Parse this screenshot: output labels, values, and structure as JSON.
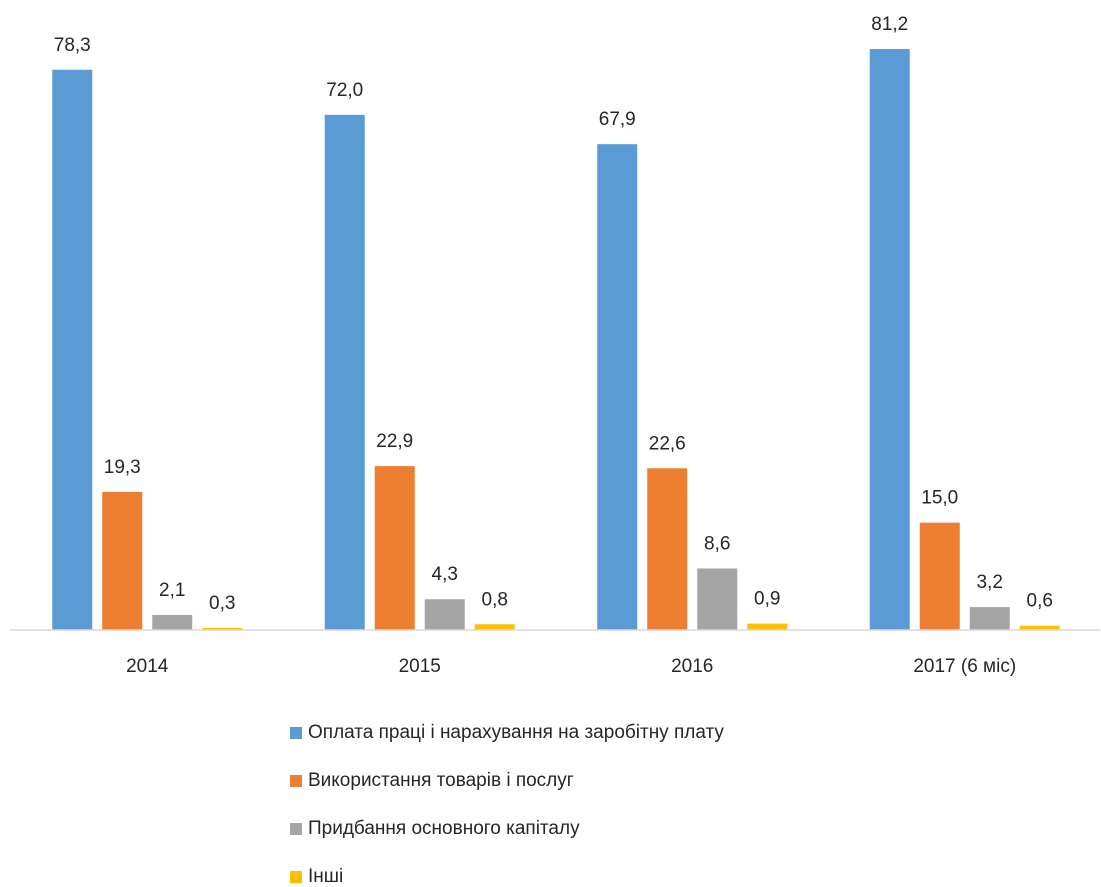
{
  "chart_data": {
    "type": "bar",
    "categories": [
      "2014",
      "2015",
      "2016",
      "2017 (6 міс)"
    ],
    "series": [
      {
        "name": "Оплата праці і нарахування на заробітну плату",
        "color": "#5b9bd5",
        "values": [
          78.3,
          72.0,
          67.9,
          81.2
        ],
        "value_labels": [
          "78,3",
          "72,0",
          "67,9",
          "81,2"
        ]
      },
      {
        "name": "Використання товарів і послуг",
        "color": "#ed7d31",
        "values": [
          19.3,
          22.9,
          22.6,
          15.0
        ],
        "value_labels": [
          "19,3",
          "22,9",
          "22,6",
          "15,0"
        ]
      },
      {
        "name": "Придбання основного капіталу",
        "color": "#a5a5a5",
        "values": [
          2.1,
          4.3,
          8.6,
          3.2
        ],
        "value_labels": [
          "2,1",
          "4,3",
          "8,6",
          "3,2"
        ]
      },
      {
        "name": "Інші",
        "color": "#ffc000",
        "values": [
          0.3,
          0.8,
          0.9,
          0.6
        ],
        "value_labels": [
          "0,3",
          "0,8",
          "0,9",
          "0,6"
        ]
      }
    ],
    "ylim": [
      0,
      80
    ],
    "legend": "bottom"
  }
}
